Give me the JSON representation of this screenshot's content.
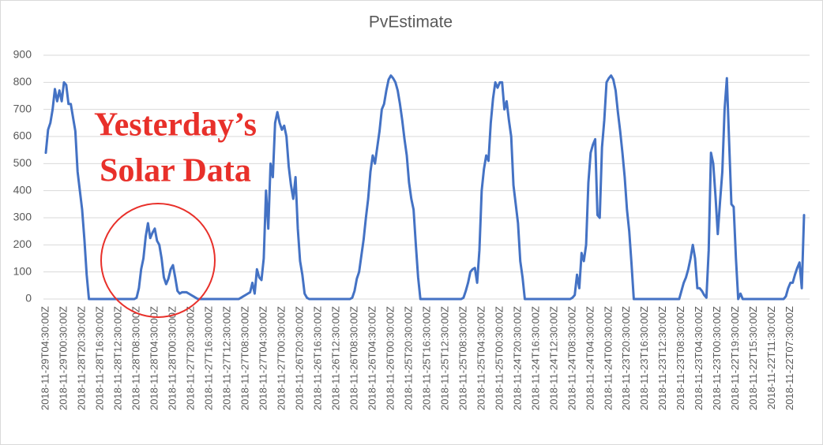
{
  "chart_data": {
    "type": "line",
    "title": "PvEstimate",
    "annotations": [
      "Yesterday’s",
      "Solar Data"
    ],
    "categories": [
      "2018-11-29T04:30:00Z",
      null,
      null,
      null,
      null,
      null,
      null,
      null,
      "2018-11-29T00:30:00Z",
      null,
      null,
      null,
      null,
      null,
      null,
      null,
      "2018-11-28T20:30:00Z",
      null,
      null,
      null,
      null,
      null,
      null,
      null,
      "2018-11-28T16:30:00Z",
      null,
      null,
      null,
      null,
      null,
      null,
      null,
      "2018-11-28T12:30:00Z",
      null,
      null,
      null,
      null,
      null,
      null,
      null,
      "2018-11-28T08:30:00Z",
      null,
      null,
      null,
      null,
      null,
      null,
      null,
      "2018-11-28T04:30:00Z",
      null,
      null,
      null,
      null,
      null,
      null,
      null,
      "2018-11-28T00:30:00Z",
      null,
      null,
      null,
      null,
      null,
      null,
      null,
      "2018-11-27T20:30:00Z",
      null,
      null,
      null,
      null,
      null,
      null,
      null,
      "2018-11-27T16:30:00Z",
      null,
      null,
      null,
      null,
      null,
      null,
      null,
      "2018-11-27T12:30:00Z",
      null,
      null,
      null,
      null,
      null,
      null,
      null,
      "2018-11-27T08:30:00Z",
      null,
      null,
      null,
      null,
      null,
      null,
      null,
      "2018-11-27T04:30:00Z",
      null,
      null,
      null,
      null,
      null,
      null,
      null,
      "2018-11-27T00:30:00Z",
      null,
      null,
      null,
      null,
      null,
      null,
      null,
      "2018-11-26T20:30:00Z",
      null,
      null,
      null,
      null,
      null,
      null,
      null,
      "2018-11-26T16:30:00Z",
      null,
      null,
      null,
      null,
      null,
      null,
      null,
      "2018-11-26T12:30:00Z",
      null,
      null,
      null,
      null,
      null,
      null,
      null,
      "2018-11-26T08:30:00Z",
      null,
      null,
      null,
      null,
      null,
      null,
      null,
      "2018-11-26T04:30:00Z",
      null,
      null,
      null,
      null,
      null,
      null,
      null,
      "2018-11-26T00:30:00Z",
      null,
      null,
      null,
      null,
      null,
      null,
      null,
      "2018-11-25T20:30:00Z",
      null,
      null,
      null,
      null,
      null,
      null,
      null,
      "2018-11-25T16:30:00Z",
      null,
      null,
      null,
      null,
      null,
      null,
      null,
      "2018-11-25T12:30:00Z",
      null,
      null,
      null,
      null,
      null,
      null,
      null,
      "2018-11-25T08:30:00Z",
      null,
      null,
      null,
      null,
      null,
      null,
      null,
      "2018-11-25T04:30:00Z",
      null,
      null,
      null,
      null,
      null,
      null,
      null,
      "2018-11-25T00:30:00Z",
      null,
      null,
      null,
      null,
      null,
      null,
      null,
      "2018-11-24T20:30:00Z",
      null,
      null,
      null,
      null,
      null,
      null,
      null,
      "2018-11-24T16:30:00Z",
      null,
      null,
      null,
      null,
      null,
      null,
      null,
      "2018-11-24T12:30:00Z",
      null,
      null,
      null,
      null,
      null,
      null,
      null,
      "2018-11-24T08:30:00Z",
      null,
      null,
      null,
      null,
      null,
      null,
      null,
      "2018-11-24T04:30:00Z",
      null,
      null,
      null,
      null,
      null,
      null,
      null,
      "2018-11-24T00:30:00Z",
      null,
      null,
      null,
      null,
      null,
      null,
      null,
      "2018-11-23T20:30:00Z",
      null,
      null,
      null,
      null,
      null,
      null,
      null,
      "2018-11-23T16:30:00Z",
      null,
      null,
      null,
      null,
      null,
      null,
      null,
      "2018-11-23T12:30:00Z",
      null,
      null,
      null,
      null,
      null,
      null,
      null,
      "2018-11-23T08:30:00Z",
      null,
      null,
      null,
      null,
      null,
      null,
      null,
      "2018-11-23T04:30:00Z",
      null,
      null,
      null,
      null,
      null,
      null,
      null,
      "2018-11-23T00:30:00Z",
      null,
      null,
      null,
      null,
      null,
      null,
      null,
      "2018-11-22T19:30:00Z",
      null,
      null,
      null,
      null,
      null,
      null,
      null,
      "2018-11-22T15:30:00Z",
      null,
      null,
      null,
      null,
      null,
      null,
      null,
      "2018-11-22T11:30:00Z",
      null,
      null,
      null,
      null,
      null,
      null,
      null,
      "2018-11-22T07:30:00Z",
      null,
      null,
      null,
      null,
      null,
      null
    ],
    "series": [
      {
        "name": "PvEstimate",
        "color": "#4472c4",
        "values": [
          540,
          625,
          650,
          700,
          775,
          730,
          770,
          730,
          800,
          790,
          720,
          720,
          670,
          620,
          470,
          400,
          330,
          220,
          90,
          0,
          0,
          0,
          0,
          0,
          0,
          0,
          0,
          0,
          0,
          0,
          0,
          0,
          0,
          0,
          0,
          0,
          0,
          0,
          0,
          0,
          5,
          40,
          110,
          150,
          230,
          280,
          225,
          245,
          260,
          215,
          200,
          150,
          80,
          55,
          75,
          110,
          125,
          80,
          30,
          20,
          25,
          25,
          25,
          20,
          15,
          10,
          5,
          0,
          0,
          0,
          0,
          0,
          0,
          0,
          0,
          0,
          0,
          0,
          0,
          0,
          0,
          0,
          0,
          0,
          0,
          0,
          5,
          10,
          15,
          20,
          25,
          60,
          20,
          110,
          80,
          70,
          150,
          400,
          260,
          500,
          450,
          650,
          690,
          650,
          625,
          640,
          600,
          490,
          420,
          370,
          450,
          260,
          140,
          90,
          20,
          5,
          0,
          0,
          0,
          0,
          0,
          0,
          0,
          0,
          0,
          0,
          0,
          0,
          0,
          0,
          0,
          0,
          0,
          0,
          0,
          5,
          30,
          75,
          100,
          160,
          220,
          300,
          370,
          470,
          530,
          500,
          560,
          620,
          700,
          720,
          770,
          810,
          825,
          815,
          800,
          770,
          720,
          660,
          590,
          530,
          430,
          370,
          330,
          200,
          80,
          0,
          0,
          0,
          0,
          0,
          0,
          0,
          0,
          0,
          0,
          0,
          0,
          0,
          0,
          0,
          0,
          0,
          0,
          0,
          5,
          30,
          60,
          100,
          110,
          115,
          60,
          180,
          400,
          480,
          530,
          510,
          650,
          740,
          800,
          780,
          800,
          800,
          700,
          730,
          660,
          600,
          420,
          350,
          280,
          140,
          80,
          0,
          0,
          0,
          0,
          0,
          0,
          0,
          0,
          0,
          0,
          0,
          0,
          0,
          0,
          0,
          0,
          0,
          0,
          0,
          0,
          0,
          5,
          15,
          90,
          40,
          170,
          140,
          200,
          430,
          540,
          570,
          590,
          310,
          300,
          560,
          660,
          800,
          815,
          825,
          810,
          770,
          690,
          620,
          540,
          450,
          330,
          250,
          130,
          0,
          0,
          0,
          0,
          0,
          0,
          0,
          0,
          0,
          0,
          0,
          0,
          0,
          0,
          0,
          0,
          0,
          0,
          0,
          0,
          0,
          30,
          60,
          80,
          110,
          150,
          200,
          150,
          40,
          40,
          30,
          15,
          5,
          180,
          540,
          500,
          380,
          240,
          360,
          470,
          700,
          815,
          580,
          350,
          340,
          150,
          0,
          20,
          0,
          0,
          0,
          0,
          0,
          0,
          0,
          0,
          0,
          0,
          0,
          0,
          0,
          0,
          0,
          0,
          0,
          0,
          0,
          10,
          40,
          60,
          60,
          90,
          115,
          135,
          40,
          310
        ]
      }
    ],
    "ylim": [
      0,
      900
    ],
    "yticks": [
      0,
      100,
      200,
      300,
      400,
      500,
      600,
      700,
      800,
      900
    ],
    "grid": true
  }
}
